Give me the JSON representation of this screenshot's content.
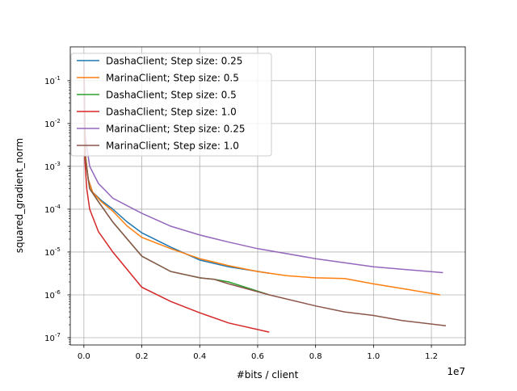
{
  "chart_data": {
    "type": "line",
    "title": "",
    "xlabel": "#bits / client",
    "ylabel": "squared_gradient_norm",
    "x_offset_label": "1e7",
    "xscale": "linear",
    "yscale": "log",
    "xlim": [
      -0.047,
      1.317
    ],
    "ylim_log10": [
      -7.17,
      -0.21
    ],
    "grid": true,
    "legend_position": "top-left",
    "xticks": [
      0.0,
      0.2,
      0.4,
      0.6,
      0.8,
      1.0,
      1.2
    ],
    "xtick_labels": [
      "0.0",
      "0.2",
      "0.4",
      "0.6",
      "0.8",
      "1.0",
      "1.2"
    ],
    "yticks_log10": [
      -1,
      -2,
      -3,
      -4,
      -5,
      -6,
      -7
    ],
    "ytick_labels": [
      "10^-1",
      "10^-2",
      "10^-3",
      "10^-4",
      "10^-5",
      "10^-6",
      "10^-7"
    ],
    "series": [
      {
        "name": "DashaClient; Step size: 0.25",
        "color": "#1f77b4",
        "x": [
          0,
          0.005,
          0.015,
          0.03,
          0.06,
          0.1,
          0.15,
          0.2,
          0.3,
          0.4,
          0.5,
          0.64
        ],
        "y": [
          0.3,
          0.002,
          0.0005,
          0.00025,
          0.00016,
          0.0001,
          5e-05,
          2.8e-05,
          1.3e-05,
          6.5e-06,
          4.5e-06,
          3.2e-06
        ]
      },
      {
        "name": "MarinaClient; Step size: 0.5",
        "color": "#ff7f0e",
        "x": [
          0,
          0.005,
          0.015,
          0.03,
          0.06,
          0.1,
          0.15,
          0.2,
          0.3,
          0.4,
          0.5,
          0.6,
          0.7,
          0.8,
          0.9,
          1.0,
          1.1,
          1.23
        ],
        "y": [
          0.3,
          0.002,
          0.0005,
          0.00025,
          0.00015,
          9e-05,
          4e-05,
          2.2e-05,
          1.2e-05,
          7e-06,
          4.8e-06,
          3.5e-06,
          2.8e-06,
          2.5e-06,
          2.4e-06,
          1.8e-06,
          1.4e-06,
          1e-06
        ]
      },
      {
        "name": "DashaClient; Step size: 0.5",
        "color": "#2ca02c",
        "x": [
          0,
          0.005,
          0.02,
          0.05,
          0.1,
          0.15,
          0.2,
          0.3,
          0.4,
          0.45,
          0.5,
          0.64
        ],
        "y": [
          0.3,
          0.0015,
          0.0003,
          0.00015,
          5e-05,
          2e-05,
          8e-06,
          3.5e-06,
          2.5e-06,
          2.3e-06,
          2e-06,
          1e-06
        ]
      },
      {
        "name": "DashaClient; Step size: 1.0",
        "color": "#d62728",
        "x": [
          0,
          0.003,
          0.01,
          0.02,
          0.05,
          0.1,
          0.2,
          0.3,
          0.4,
          0.5,
          0.64
        ],
        "y": [
          0.3,
          0.0015,
          0.0003,
          0.0001,
          3e-05,
          1e-05,
          1.5e-06,
          7e-07,
          3.8e-07,
          2.2e-07,
          1.35e-07
        ]
      },
      {
        "name": "MarinaClient; Step size: 0.25",
        "color": "#9467bd",
        "x": [
          0,
          0.005,
          0.02,
          0.05,
          0.1,
          0.2,
          0.3,
          0.4,
          0.5,
          0.6,
          0.8,
          1.0,
          1.24
        ],
        "y": [
          0.3,
          0.005,
          0.001,
          0.0004,
          0.00018,
          8e-05,
          4e-05,
          2.5e-05,
          1.7e-05,
          1.2e-05,
          7e-06,
          4.5e-06,
          3.3e-06
        ]
      },
      {
        "name": "MarinaClient; Step size: 1.0",
        "color": "#8c564b",
        "x": [
          0,
          0.005,
          0.02,
          0.05,
          0.1,
          0.15,
          0.2,
          0.3,
          0.4,
          0.45,
          0.5,
          0.64,
          0.7,
          0.8,
          0.9,
          1.0,
          1.1,
          1.25
        ],
        "y": [
          0.3,
          0.0015,
          0.0003,
          0.00015,
          5e-05,
          2e-05,
          8e-06,
          3.5e-06,
          2.5e-06,
          2.3e-06,
          1.8e-06,
          1e-06,
          8e-07,
          5.5e-07,
          4e-07,
          3.3e-07,
          2.5e-07,
          1.9e-07
        ]
      }
    ]
  }
}
